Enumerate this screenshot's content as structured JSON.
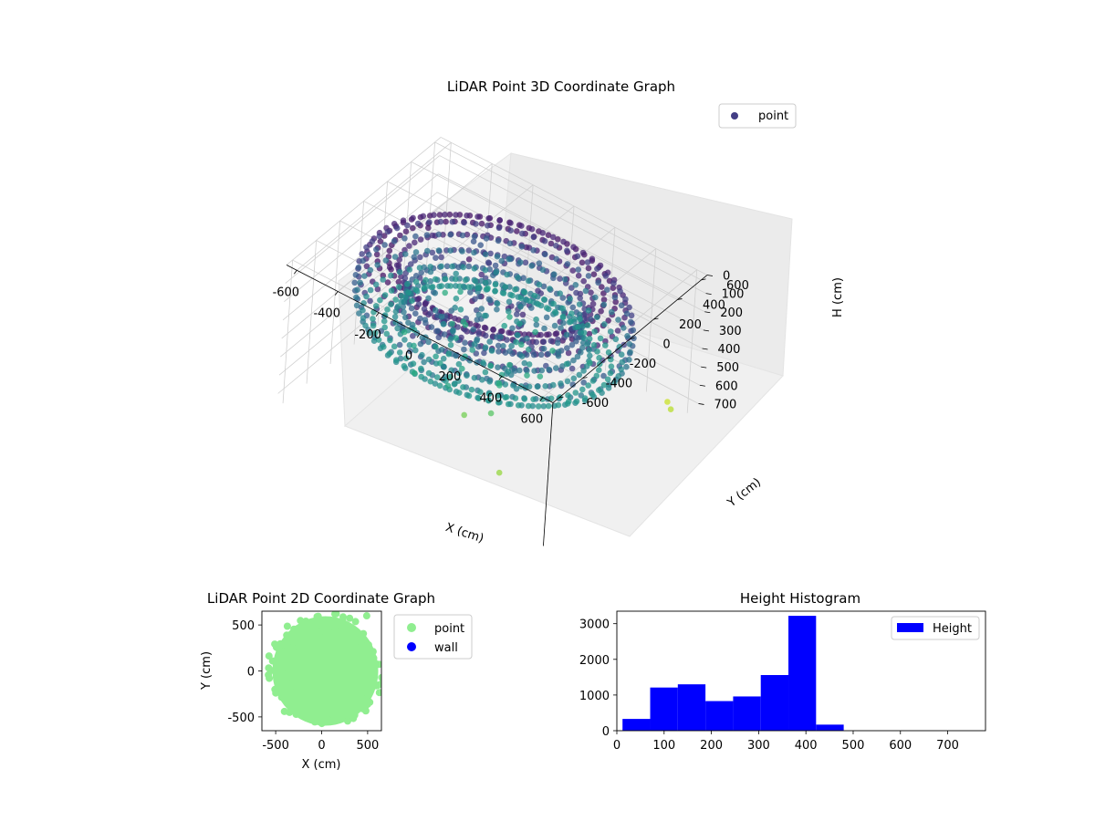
{
  "chart_data": [
    {
      "type": "scatter",
      "projection": "3d",
      "title": "LiDAR Point 3D Coordinate Graph",
      "xlabel": "X (cm)",
      "ylabel": "Y (cm)",
      "zlabel": "H (cm)",
      "xlim": [
        -650,
        650
      ],
      "ylim": [
        -650,
        650
      ],
      "zlim": [
        780,
        0
      ],
      "z_inverted": true,
      "xticks": [
        -600,
        -400,
        -200,
        0,
        200,
        400,
        600
      ],
      "yticks": [
        -600,
        -400,
        -200,
        0,
        200,
        400,
        600
      ],
      "zticks": [
        0,
        100,
        200,
        300,
        400,
        500,
        600,
        700
      ],
      "colormap": "viridis",
      "grid": true,
      "legend": {
        "position": "top-right",
        "entries": [
          {
            "label": "point",
            "color": "#433e85"
          }
        ]
      },
      "series": [
        {
          "name": "point",
          "description_of_shape": "dense torus-like ring of points around the sensor, radius ~400-600 cm, heights mostly 0-450 cm, plus sparse scattered points",
          "outlier_points": [
            {
              "x": 340,
              "y": -500,
              "h": 640
            },
            {
              "x": 50,
              "y": -300,
              "h": 600
            },
            {
              "x": 150,
              "y": -250,
              "h": 560
            },
            {
              "x": 550,
              "y": 560,
              "h": 700
            },
            {
              "x": 600,
              "y": 500,
              "h": 680
            }
          ]
        }
      ]
    },
    {
      "type": "scatter",
      "title": "LiDAR Point 2D Coordinate Graph",
      "xlabel": "X (cm)",
      "ylabel": "Y (cm)",
      "xlim": [
        -650,
        650
      ],
      "ylim": [
        -650,
        650
      ],
      "xticks": [
        -500,
        0,
        500
      ],
      "yticks": [
        -500,
        0,
        500
      ],
      "legend": {
        "position": "right",
        "entries": [
          {
            "label": "point",
            "color": "#90ee90"
          },
          {
            "label": "wall",
            "color": "#0000ff"
          }
        ]
      },
      "series": [
        {
          "name": "point",
          "color": "#90ee90",
          "description_of_shape": "filled disk of points centered near origin, radius ~600 cm"
        },
        {
          "name": "wall",
          "color": "#0000ff",
          "points": []
        }
      ]
    },
    {
      "type": "bar",
      "subtype": "histogram",
      "title": "Height Histogram",
      "xlim": [
        0,
        780
      ],
      "ylim": [
        0,
        3350
      ],
      "xticks": [
        0,
        100,
        200,
        300,
        400,
        500,
        600,
        700
      ],
      "yticks": [
        0,
        1000,
        2000,
        3000
      ],
      "legend": {
        "position": "top-right",
        "entries": [
          {
            "label": "Height",
            "color": "#0000ff"
          }
        ]
      },
      "bin_edges": [
        12,
        70.5,
        129,
        187.5,
        246,
        304.5,
        363,
        421.5,
        480,
        538.5,
        597,
        655.5,
        714,
        772.5
      ],
      "series": [
        {
          "name": "Height",
          "color": "#0000ff",
          "values": [
            330,
            1210,
            1300,
            830,
            960,
            1560,
            3220,
            170,
            0,
            0,
            0,
            0,
            0
          ]
        }
      ]
    }
  ]
}
